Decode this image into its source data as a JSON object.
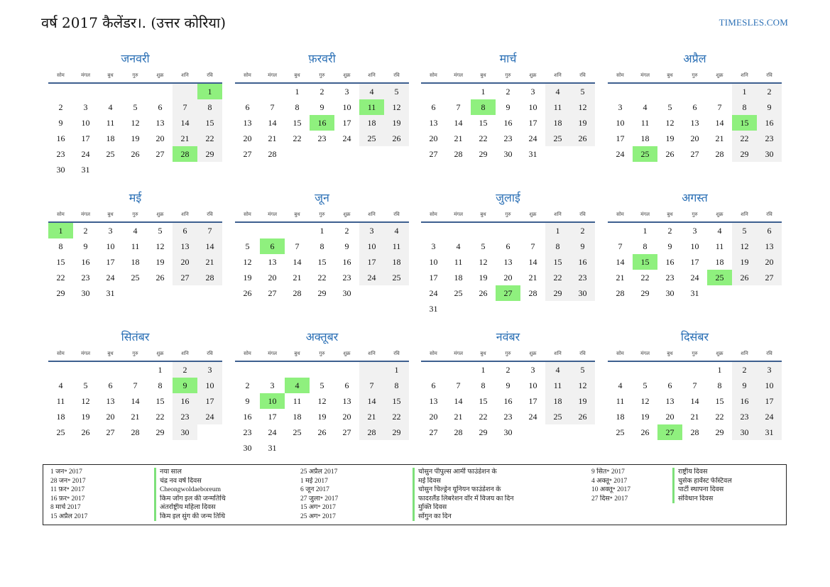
{
  "header": {
    "title": "वर्ष 2017 कैलेंडर।. (उत्तर कोरिया)",
    "brand": "TIMESLES.COM"
  },
  "weekdays": [
    "सोम",
    "मंगल",
    "बुध",
    "गुरु",
    "शुक्र",
    "शनि",
    "रवि"
  ],
  "months": [
    {
      "name": "जनवरी",
      "offset": 6,
      "days": 31,
      "holidays": [
        1,
        28
      ]
    },
    {
      "name": "फ़रवरी",
      "offset": 2,
      "days": 28,
      "holidays": [
        11,
        16
      ]
    },
    {
      "name": "मार्च",
      "offset": 2,
      "days": 31,
      "holidays": [
        8
      ]
    },
    {
      "name": "अप्रैल",
      "offset": 5,
      "days": 30,
      "holidays": [
        15,
        25
      ]
    },
    {
      "name": "मई",
      "offset": 0,
      "days": 31,
      "holidays": [
        1
      ]
    },
    {
      "name": "जून",
      "offset": 3,
      "days": 30,
      "holidays": [
        6
      ]
    },
    {
      "name": "जुलाई",
      "offset": 5,
      "days": 31,
      "holidays": [
        27
      ]
    },
    {
      "name": "अगस्त",
      "offset": 1,
      "days": 31,
      "holidays": [
        15,
        25
      ]
    },
    {
      "name": "सितंबर",
      "offset": 4,
      "days": 30,
      "holidays": [
        9
      ]
    },
    {
      "name": "अक्तूबर",
      "offset": 6,
      "days": 31,
      "holidays": [
        4,
        10
      ]
    },
    {
      "name": "नवंबर",
      "offset": 2,
      "days": 30,
      "holidays": []
    },
    {
      "name": "दिसंबर",
      "offset": 4,
      "days": 31,
      "holidays": [
        27
      ]
    }
  ],
  "holiday_columns": [
    {
      "dates": [
        "1 जन॰ 2017",
        "28 जन॰ 2017",
        "11 फ़र॰ 2017",
        "16 फ़र॰ 2017",
        "8 मार्च 2017",
        "15 अप्रैल 2017"
      ],
      "names": [
        "नया साल",
        "चंद्र नव वर्ष दिवस",
        "Cheongwoldaeboreum",
        "किम जोंग इल की जन्मतिथि",
        "अंतर्राष्ट्रीय महिला दिवस",
        "किम इल सुंग की जन्म तिथि"
      ]
    },
    {
      "dates": [
        "25 अप्रैल 2017",
        "1 मई 2017",
        "6 जून 2017",
        "27 जुला॰ 2017",
        "15 अग॰ 2017",
        "25 अग॰ 2017"
      ],
      "names": [
        "चोसुन पीपुल्स आर्मी फाउंडेशन के",
        "मई दिवस",
        "चोसुन चिल्ड्रेन यूनियन फाउंडेशन के",
        "फादरलैंड लिबरेशन वॉर में विजय का दिन",
        "मुक्ति दिवस",
        "सोंगुन का दिन"
      ]
    },
    {
      "dates": [
        "9 सित॰ 2017",
        "4 अक्तू॰ 2017",
        "10 अक्तू॰ 2017",
        "27 दिस॰ 2017"
      ],
      "names": [
        "राष्ट्रीय दिवस",
        "चुसेक हार्वेस्ट फेस्टिवल",
        "पार्टी स्थापना दिवस",
        "संविधान दिवस"
      ]
    }
  ]
}
